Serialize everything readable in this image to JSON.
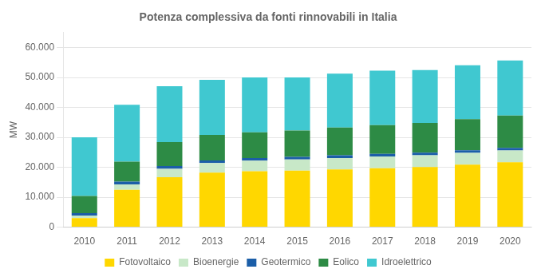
{
  "chart_data": {
    "type": "bar",
    "title": "Potenza complessiva da fonti rinnovabili in Italia",
    "categories": [
      "2010",
      "2011",
      "2012",
      "2013",
      "2014",
      "2015",
      "2016",
      "2017",
      "2018",
      "2019",
      "2020"
    ],
    "series": [
      {
        "name": "Fotovoltaico",
        "color": "#FFD700",
        "values": [
          3000,
          12500,
          16700,
          18200,
          18700,
          18900,
          19300,
          19700,
          20100,
          20900,
          21700
        ]
      },
      {
        "name": "Bioenergie",
        "color": "#C8E8C8",
        "values": [
          900,
          1800,
          2800,
          3200,
          3500,
          3700,
          3800,
          3900,
          3900,
          3900,
          3900
        ]
      },
      {
        "name": "Geotermico",
        "color": "#1B5EA8",
        "values": [
          800,
          900,
          900,
          900,
          900,
          900,
          900,
          900,
          900,
          900,
          900
        ]
      },
      {
        "name": "Eolico",
        "color": "#2D8B45",
        "values": [
          5700,
          6700,
          8000,
          8500,
          8600,
          8800,
          9300,
          9600,
          9900,
          10400,
          10800
        ]
      },
      {
        "name": "Idroelettrico",
        "color": "#40C8D0",
        "values": [
          19600,
          19000,
          18700,
          18400,
          18300,
          17700,
          18000,
          18200,
          17700,
          18000,
          18400
        ]
      }
    ],
    "ylabel": "MW",
    "ylim": [
      0,
      65000
    ],
    "yticks": [
      0,
      {
        "value": 10000,
        "label": "10.000"
      },
      {
        "value": 20000,
        "label": "20.000"
      },
      {
        "value": 30000,
        "label": "30.000"
      },
      {
        "value": 40000,
        "label": "40.000"
      },
      {
        "value": 50000,
        "label": "50.000"
      },
      {
        "value": 60000,
        "label": "60.000"
      }
    ],
    "stacked": true,
    "grid": true,
    "legend": "bottom"
  }
}
